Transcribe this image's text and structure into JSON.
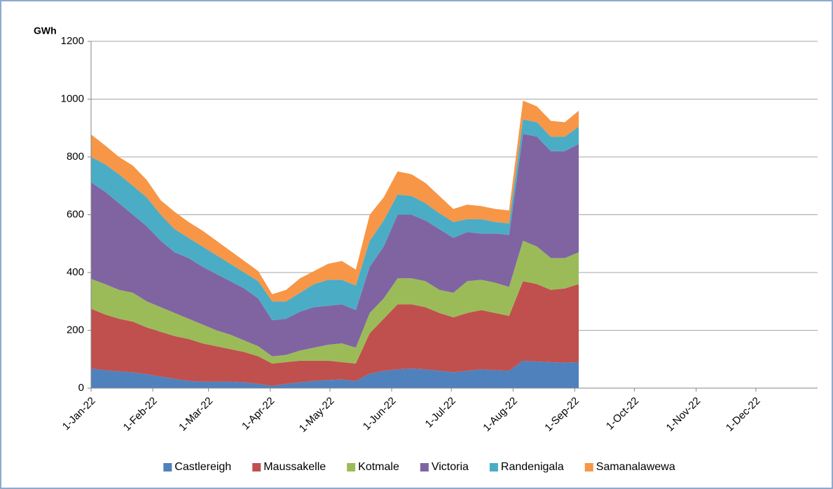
{
  "chart_data": {
    "type": "stacked_area",
    "y_label": "GWh",
    "x": [
      "2022-01-01",
      "2022-01-08",
      "2022-01-15",
      "2022-01-22",
      "2022-01-29",
      "2022-02-05",
      "2022-02-12",
      "2022-02-19",
      "2022-02-26",
      "2022-03-05",
      "2022-03-12",
      "2022-03-19",
      "2022-03-26",
      "2022-04-02",
      "2022-04-09",
      "2022-04-16",
      "2022-04-23",
      "2022-04-30",
      "2022-05-07",
      "2022-05-14",
      "2022-05-21",
      "2022-05-28",
      "2022-06-04",
      "2022-06-11",
      "2022-06-18",
      "2022-06-25",
      "2022-07-02",
      "2022-07-09",
      "2022-07-16",
      "2022-07-23",
      "2022-07-30",
      "2022-08-06",
      "2022-08-13",
      "2022-08-20",
      "2022-08-27",
      "2022-09-03"
    ],
    "series": [
      {
        "name": "Castlereigh",
        "color": "#4f81bd",
        "values": [
          68,
          62,
          58,
          55,
          48,
          40,
          32,
          25,
          22,
          22,
          22,
          20,
          15,
          8,
          15,
          20,
          25,
          28,
          30,
          25,
          50,
          60,
          65,
          68,
          65,
          60,
          55,
          60,
          65,
          62,
          60,
          95,
          92,
          90,
          88,
          90
        ]
      },
      {
        "name": "Maussakelle",
        "color": "#c0504d",
        "values": [
          207,
          193,
          182,
          175,
          162,
          155,
          148,
          145,
          133,
          123,
          113,
          105,
          95,
          77,
          75,
          75,
          70,
          67,
          60,
          60,
          140,
          180,
          225,
          222,
          215,
          200,
          190,
          200,
          205,
          198,
          190,
          275,
          268,
          250,
          257,
          270
        ]
      },
      {
        "name": "Kotmale",
        "color": "#9bbb59",
        "values": [
          103,
          105,
          100,
          100,
          90,
          85,
          80,
          70,
          65,
          55,
          50,
          40,
          35,
          25,
          25,
          35,
          45,
          55,
          65,
          55,
          70,
          70,
          90,
          90,
          90,
          80,
          85,
          110,
          105,
          105,
          100,
          140,
          130,
          110,
          105,
          110
        ]
      },
      {
        "name": "Victoria",
        "color": "#8064a2",
        "values": [
          334,
          320,
          300,
          270,
          260,
          230,
          210,
          210,
          200,
          195,
          185,
          180,
          165,
          125,
          125,
          135,
          140,
          135,
          135,
          130,
          160,
          180,
          220,
          220,
          210,
          210,
          190,
          170,
          160,
          170,
          180,
          370,
          380,
          370,
          370,
          375
        ]
      },
      {
        "name": "Randenigala",
        "color": "#4bacc6",
        "values": [
          88,
          95,
          100,
          100,
          100,
          90,
          80,
          70,
          70,
          65,
          60,
          55,
          60,
          65,
          60,
          65,
          80,
          90,
          85,
          85,
          90,
          90,
          70,
          65,
          60,
          55,
          55,
          45,
          50,
          40,
          40,
          50,
          50,
          50,
          50,
          60
        ]
      },
      {
        "name": "Samanalawewa",
        "color": "#f79646",
        "values": [
          78,
          65,
          60,
          70,
          60,
          50,
          60,
          55,
          55,
          50,
          45,
          40,
          35,
          25,
          40,
          50,
          45,
          55,
          65,
          55,
          90,
          80,
          80,
          75,
          70,
          60,
          45,
          50,
          45,
          45,
          45,
          65,
          55,
          55,
          50,
          55
        ]
      }
    ],
    "xlim": [
      "2022-01-01",
      "2023-01-01"
    ],
    "xticks": [
      {
        "value": "2022-01-01",
        "label": "1-Jan-22"
      },
      {
        "value": "2022-02-01",
        "label": "1-Feb-22"
      },
      {
        "value": "2022-03-01",
        "label": "1-Mar-22"
      },
      {
        "value": "2022-04-01",
        "label": "1-Apr-22"
      },
      {
        "value": "2022-05-01",
        "label": "1-May-22"
      },
      {
        "value": "2022-06-01",
        "label": "1-Jun-22"
      },
      {
        "value": "2022-07-01",
        "label": "1-Jul-22"
      },
      {
        "value": "2022-08-01",
        "label": "1-Aug-22"
      },
      {
        "value": "2022-09-01",
        "label": "1-Sep-22"
      },
      {
        "value": "2022-10-01",
        "label": "1-Oct-22"
      },
      {
        "value": "2022-11-01",
        "label": "1-Nov-22"
      },
      {
        "value": "2022-12-01",
        "label": "1-Dec-22"
      }
    ],
    "ylim": [
      0,
      1200
    ],
    "yticks": [
      0,
      200,
      400,
      600,
      800,
      1000,
      1200
    ],
    "grid": true,
    "legend": "bottom"
  }
}
